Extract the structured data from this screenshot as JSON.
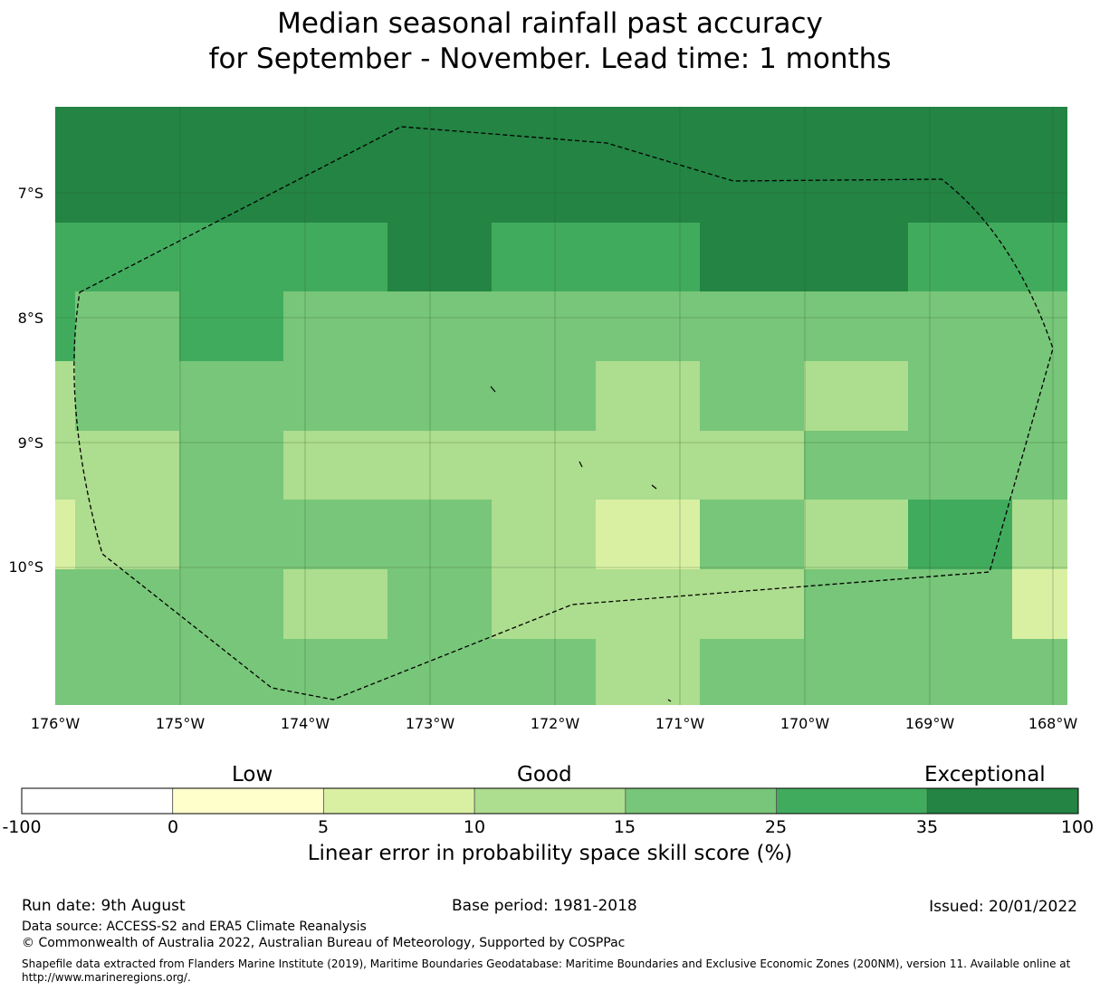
{
  "title": {
    "line1": "Median seasonal rainfall past accuracy",
    "line2": "for September - November. Lead time: 1 months"
  },
  "map": {
    "lat_ticks": [
      "7°S",
      "8°S",
      "9°S",
      "10°S"
    ],
    "lon_ticks": [
      "176°W",
      "175°W",
      "174°W",
      "173°W",
      "172°W",
      "171°W",
      "170°W",
      "169°W",
      "168°W"
    ],
    "boundary_style": "dashed black EEZ outline",
    "islands": "small black island outlines"
  },
  "chart_data": {
    "type": "heatmap",
    "x": [
      "176°W",
      "175°W",
      "174°W",
      "173°W",
      "172°W",
      "171°W",
      "170°W",
      "169°W",
      "168°W"
    ],
    "y": [
      "7°S",
      "8°S",
      "9°S",
      "10°S"
    ],
    "class_colors": {
      "0-5": "#ffffcc",
      "5-10": "#d9f0a3",
      "10-15": "#addd8e",
      "15-25": "#78c679",
      "25-35": "#41ab5d",
      "35-100": "#238443"
    },
    "colorbar": {
      "bounds": [
        -100,
        0,
        5,
        10,
        15,
        25,
        35,
        100
      ],
      "tick_labels": [
        "-100",
        "0",
        "5",
        "10",
        "15",
        "25",
        "35",
        "100"
      ],
      "colors": [
        "#ffffff",
        "#ffffcc",
        "#d9f0a3",
        "#addd8e",
        "#78c679",
        "#41ab5d",
        "#238443"
      ],
      "category_labels": [
        "Low",
        "Good",
        "Exceptional"
      ],
      "xlabel": "Linear error in probability space skill score (%)"
    }
  },
  "footer": {
    "run_date": "Run date: 9th August",
    "base_period": "Base period: 1981-2018",
    "issued": "Issued: 20/01/2022",
    "data_source": "Data source: ACCESS-S2 and ERA5 Climate Reanalysis",
    "copyright": "© Commonwealth of Australia 2022, Australian Bureau of Meteorology, Supported by COSPPac",
    "shapefile": "Shapefile data extracted from Flanders Marine Institute (2019), Maritime Boundaries Geodatabase: Maritime Boundaries and Exclusive Economic Zones (200NM), version 11. Available online at http://www.marineregions.org/."
  }
}
